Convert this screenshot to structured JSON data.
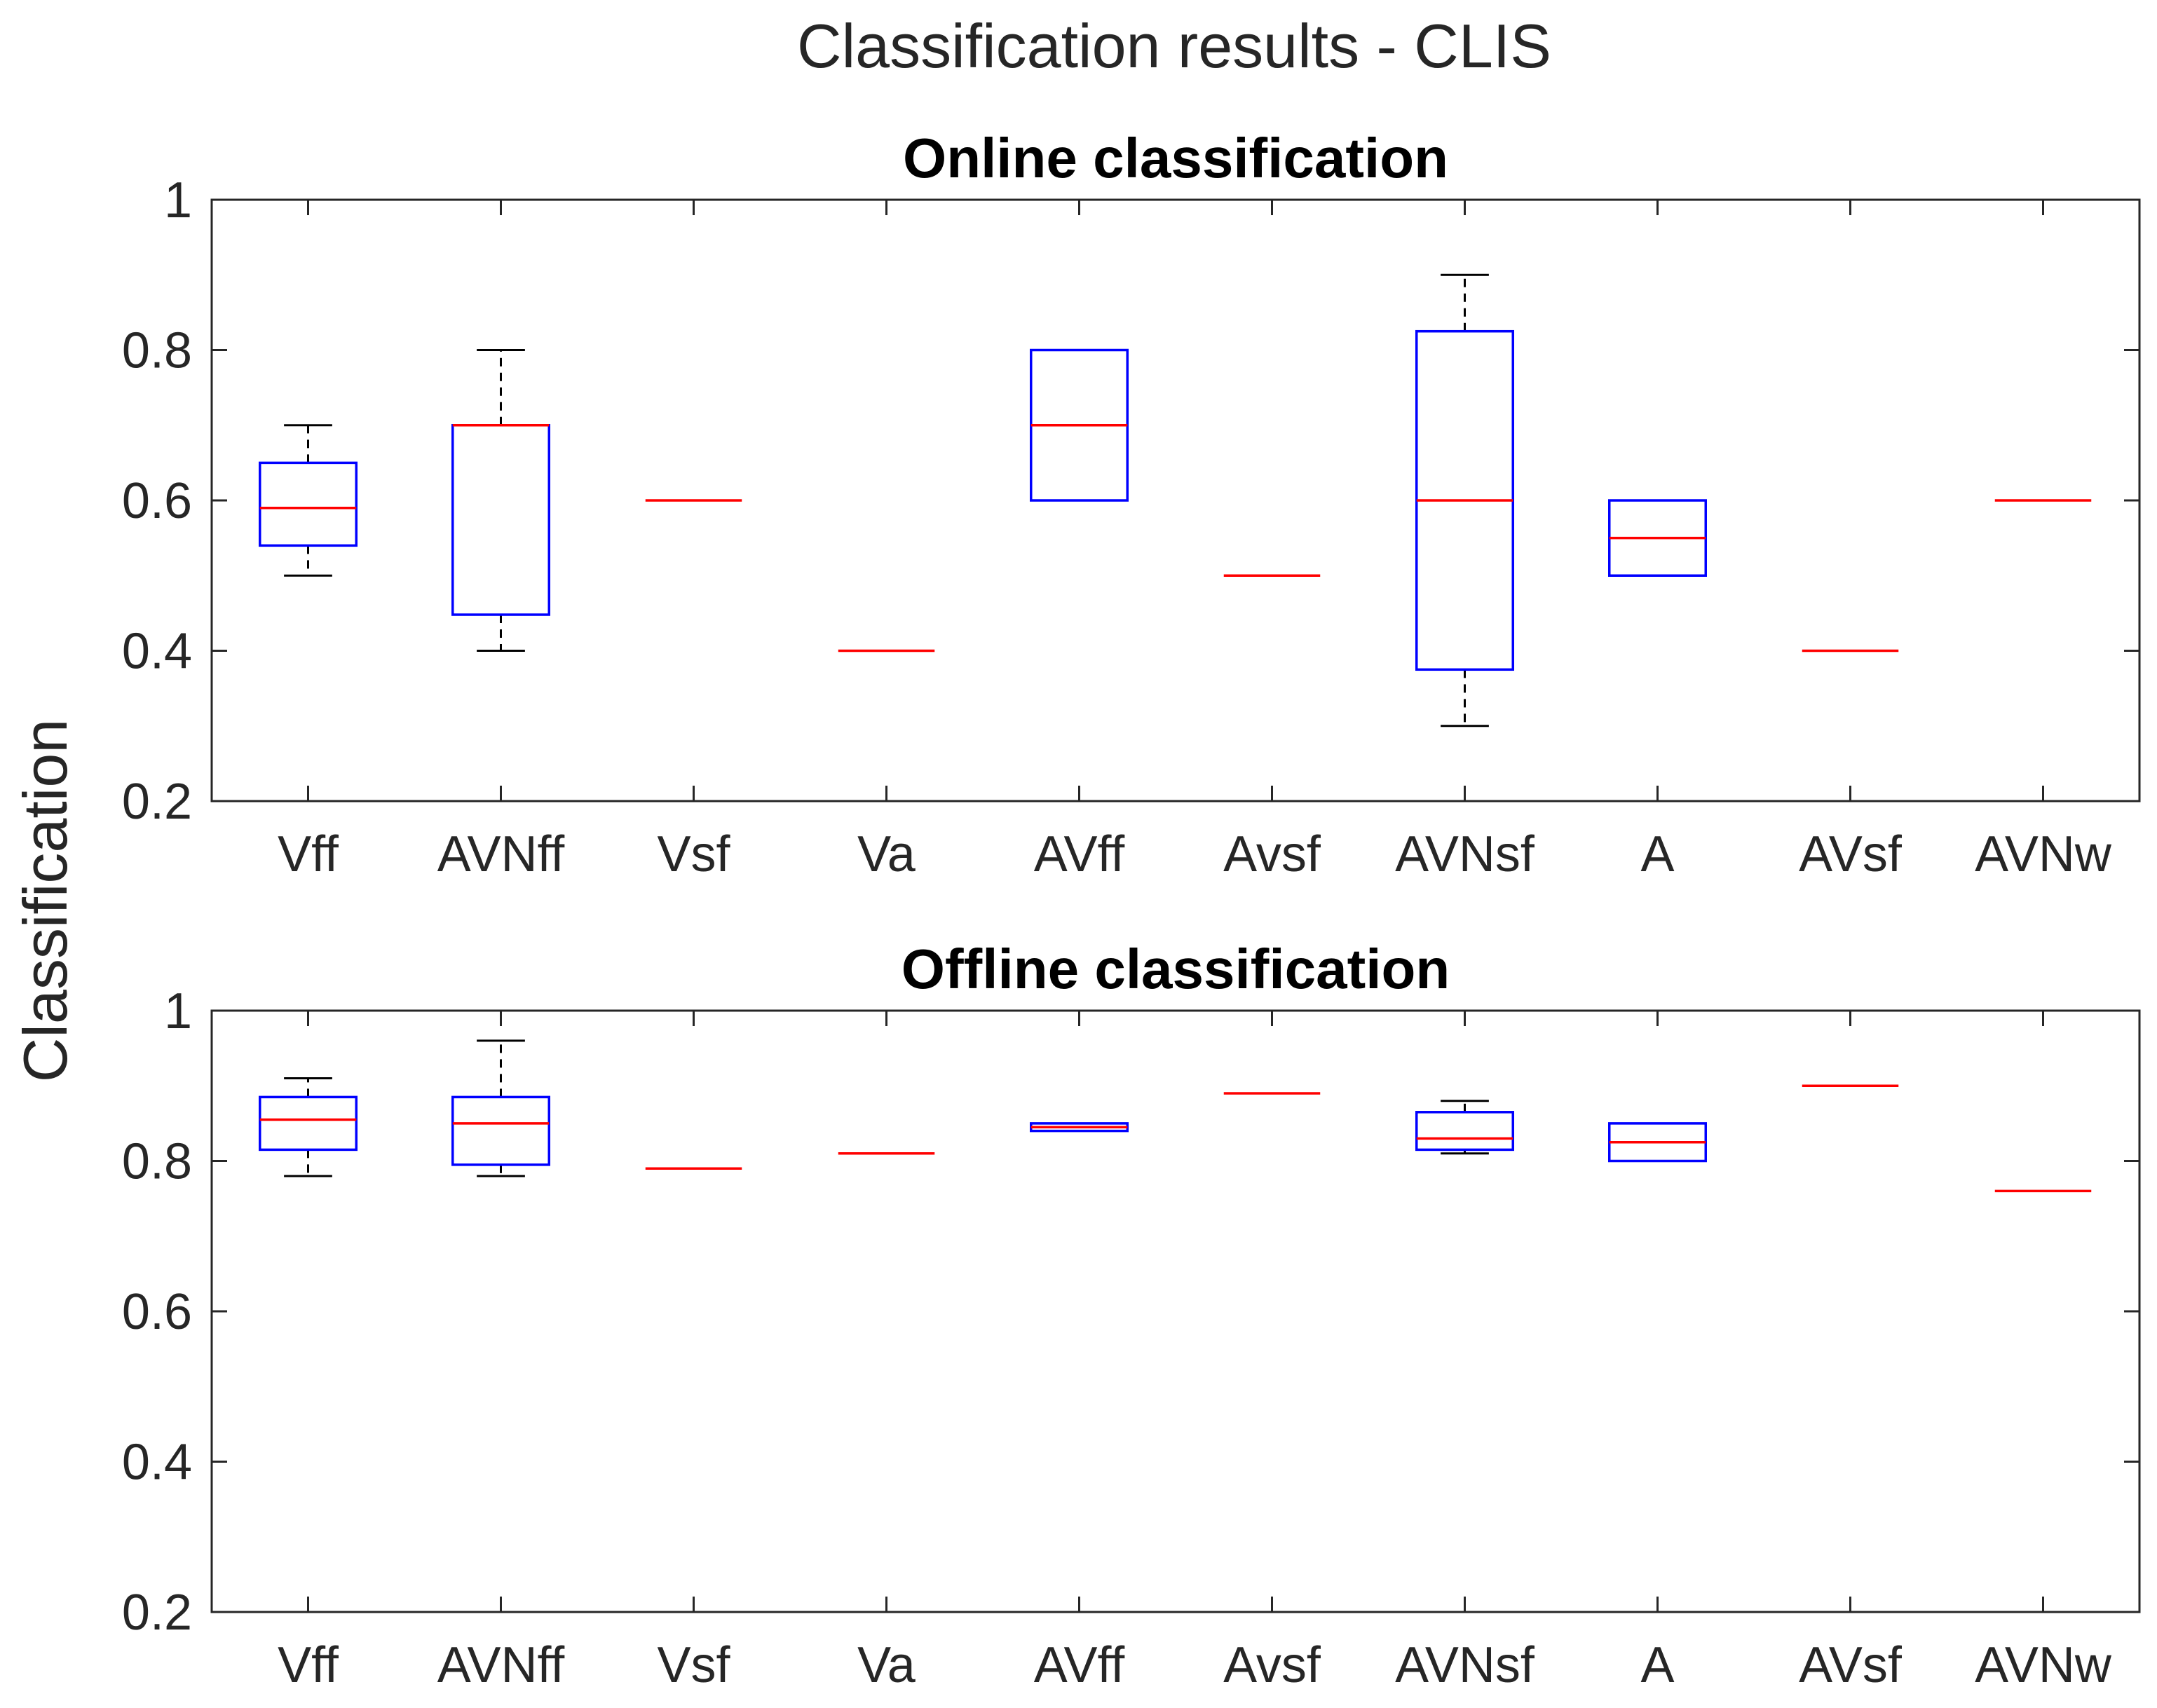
{
  "chart_data": {
    "type": "box",
    "title": "Classification results - CLIS",
    "ylabel": "Classification",
    "colors": {
      "box": "#0000ff",
      "median": "#ff0000",
      "whisker": "#000000",
      "axis": "#262626"
    },
    "categories": [
      "Vff",
      "AVNff",
      "Vsf",
      "Va",
      "AVff",
      "Avsf",
      "AVNsf",
      "A",
      "AVsf",
      "AVNw"
    ],
    "panels": [
      {
        "title": "Online classification",
        "ylim": [
          0.2,
          1.0
        ],
        "yticks": [
          0.2,
          0.4,
          0.6,
          0.8,
          1.0
        ],
        "ytick_labels": [
          "0.2",
          "0.4",
          "0.6",
          "0.8",
          "1"
        ],
        "boxes": [
          {
            "category": "Vff",
            "min": 0.5,
            "q1": 0.54,
            "median": 0.59,
            "q3": 0.65,
            "max": 0.7
          },
          {
            "category": "AVNff",
            "min": 0.4,
            "q1": 0.448,
            "median": 0.7,
            "q3": 0.7,
            "max": 0.8
          },
          {
            "category": "Vsf",
            "min": 0.6,
            "q1": 0.6,
            "median": 0.6,
            "q3": 0.6,
            "max": 0.6
          },
          {
            "category": "Va",
            "min": 0.4,
            "q1": 0.4,
            "median": 0.4,
            "q3": 0.4,
            "max": 0.4
          },
          {
            "category": "AVff",
            "min": 0.6,
            "q1": 0.6,
            "median": 0.7,
            "q3": 0.8,
            "max": 0.8
          },
          {
            "category": "Avsf",
            "min": 0.5,
            "q1": 0.5,
            "median": 0.5,
            "q3": 0.5,
            "max": 0.5
          },
          {
            "category": "AVNsf",
            "min": 0.3,
            "q1": 0.375,
            "median": 0.6,
            "q3": 0.825,
            "max": 0.9
          },
          {
            "category": "A",
            "min": 0.5,
            "q1": 0.5,
            "median": 0.55,
            "q3": 0.6,
            "max": 0.6
          },
          {
            "category": "AVsf",
            "min": 0.4,
            "q1": 0.4,
            "median": 0.4,
            "q3": 0.4,
            "max": 0.4
          },
          {
            "category": "AVNw",
            "min": 0.6,
            "q1": 0.6,
            "median": 0.6,
            "q3": 0.6,
            "max": 0.6
          }
        ]
      },
      {
        "title": "Offline classification",
        "ylim": [
          0.2,
          1.0
        ],
        "yticks": [
          0.2,
          0.4,
          0.6,
          0.8,
          1.0
        ],
        "ytick_labels": [
          "0.2",
          "0.4",
          "0.6",
          "0.8",
          "1"
        ],
        "boxes": [
          {
            "category": "Vff",
            "min": 0.78,
            "q1": 0.815,
            "median": 0.855,
            "q3": 0.885,
            "max": 0.91
          },
          {
            "category": "AVNff",
            "min": 0.78,
            "q1": 0.795,
            "median": 0.85,
            "q3": 0.885,
            "max": 0.96
          },
          {
            "category": "Vsf",
            "min": 0.79,
            "q1": 0.79,
            "median": 0.79,
            "q3": 0.79,
            "max": 0.79
          },
          {
            "category": "Va",
            "min": 0.81,
            "q1": 0.81,
            "median": 0.81,
            "q3": 0.81,
            "max": 0.81
          },
          {
            "category": "AVff",
            "min": 0.84,
            "q1": 0.84,
            "median": 0.845,
            "q3": 0.85,
            "max": 0.85
          },
          {
            "category": "Avsf",
            "min": 0.89,
            "q1": 0.89,
            "median": 0.89,
            "q3": 0.89,
            "max": 0.89
          },
          {
            "category": "AVNsf",
            "min": 0.81,
            "q1": 0.815,
            "median": 0.83,
            "q3": 0.865,
            "max": 0.88
          },
          {
            "category": "A",
            "min": 0.8,
            "q1": 0.8,
            "median": 0.825,
            "q3": 0.85,
            "max": 0.85
          },
          {
            "category": "AVsf",
            "min": 0.9,
            "q1": 0.9,
            "median": 0.9,
            "q3": 0.9,
            "max": 0.9
          },
          {
            "category": "AVNw",
            "min": 0.76,
            "q1": 0.76,
            "median": 0.76,
            "q3": 0.76,
            "max": 0.76
          }
        ]
      }
    ]
  }
}
